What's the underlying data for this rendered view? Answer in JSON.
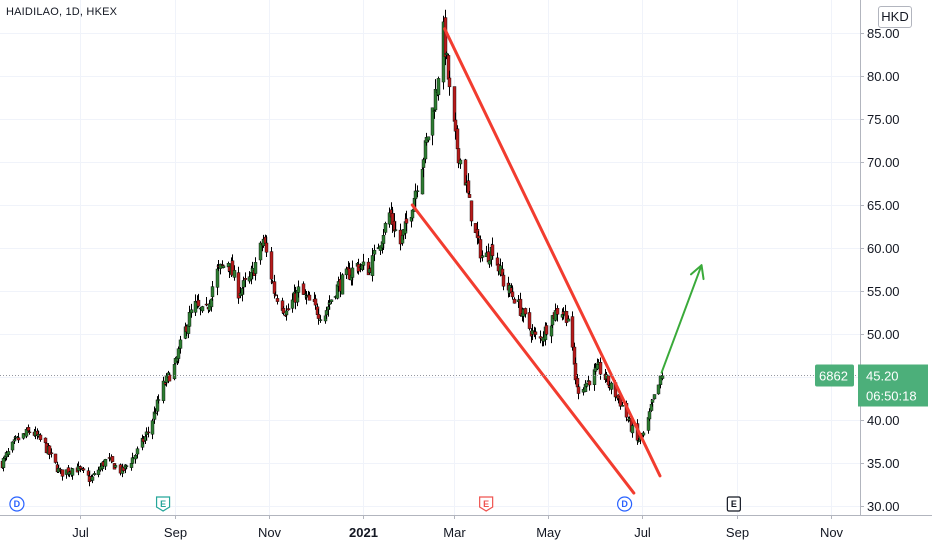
{
  "header": {
    "symbol_label": "HAIDILAO, 1D, HKEX",
    "currency": "HKD"
  },
  "price_tag": {
    "ticker": "6862",
    "price": "45.20",
    "countdown": "06:50:18",
    "color": "#4caf7a"
  },
  "colors": {
    "up": "#26a69a",
    "down": "#ef5350",
    "candle_up": "#2e7d32",
    "candle_down": "#b71c1c",
    "trend_red": "#f23c2f",
    "arrow_green": "#3aaa3a",
    "dividend": "#2962ff",
    "earnings_past": "#26a69a",
    "earnings_recent": "#ef5350",
    "earnings_future": "#131722"
  },
  "chart_data": {
    "type": "candlestick",
    "title": "HAIDILAO, 1D, HKEX",
    "currency": "HKD",
    "y_ticks": [
      "30.00",
      "35.00",
      "40.00",
      "45.00",
      "50.00",
      "55.00",
      "60.00",
      "65.00",
      "70.00",
      "75.00",
      "80.00",
      "85.00"
    ],
    "ylim": [
      30,
      87
    ],
    "x_ticks": [
      {
        "label": "Jul",
        "date": "2020-07-01"
      },
      {
        "label": "Sep",
        "date": "2020-09-01"
      },
      {
        "label": "Nov",
        "date": "2020-11-01"
      },
      {
        "label": "2021",
        "date": "2021-01-01",
        "bold": true
      },
      {
        "label": "Mar",
        "date": "2021-03-01"
      },
      {
        "label": "May",
        "date": "2021-05-01"
      },
      {
        "label": "Jul",
        "date": "2021-07-01"
      },
      {
        "label": "Sep",
        "date": "2021-09-01"
      },
      {
        "label": "Nov",
        "date": "2021-11-01"
      }
    ],
    "xlim": [
      "2020-05-10",
      "2021-11-20"
    ],
    "price_path": [
      [
        "2020-05-11",
        35.0
      ],
      [
        "2020-05-20",
        37.5
      ],
      [
        "2020-05-30",
        38.8
      ],
      [
        "2020-06-08",
        37.0
      ],
      [
        "2020-06-18",
        33.8
      ],
      [
        "2020-06-28",
        34.5
      ],
      [
        "2020-07-08",
        33.0
      ],
      [
        "2020-07-18",
        35.5
      ],
      [
        "2020-07-28",
        34.0
      ],
      [
        "2020-08-06",
        36.0
      ],
      [
        "2020-08-15",
        39.0
      ],
      [
        "2020-08-24",
        44.0
      ],
      [
        "2020-09-01",
        46.5
      ],
      [
        "2020-09-06",
        50.0
      ],
      [
        "2020-09-13",
        53.5
      ],
      [
        "2020-09-20",
        52.0
      ],
      [
        "2020-09-27",
        57.0
      ],
      [
        "2020-10-05",
        58.5
      ],
      [
        "2020-10-12",
        55.0
      ],
      [
        "2020-10-20",
        56.5
      ],
      [
        "2020-10-28",
        61.0
      ],
      [
        "2020-11-04",
        55.0
      ],
      [
        "2020-11-12",
        52.5
      ],
      [
        "2020-11-20",
        55.0
      ],
      [
        "2020-11-28",
        53.5
      ],
      [
        "2020-12-06",
        52.0
      ],
      [
        "2020-12-13",
        55.0
      ],
      [
        "2020-12-20",
        56.5
      ],
      [
        "2020-12-28",
        58.0
      ],
      [
        "2021-01-05",
        57.5
      ],
      [
        "2021-01-12",
        61.0
      ],
      [
        "2021-01-18",
        64.0
      ],
      [
        "2021-01-25",
        60.5
      ],
      [
        "2021-02-01",
        64.5
      ],
      [
        "2021-02-08",
        70.0
      ],
      [
        "2021-02-13",
        74.0
      ],
      [
        "2021-02-18",
        79.0
      ],
      [
        "2021-02-22",
        85.0
      ],
      [
        "2021-02-26",
        78.0
      ],
      [
        "2021-03-02",
        72.5
      ],
      [
        "2021-03-08",
        68.0
      ],
      [
        "2021-03-14",
        62.0
      ],
      [
        "2021-03-20",
        58.5
      ],
      [
        "2021-03-26",
        60.0
      ],
      [
        "2021-04-02",
        56.0
      ],
      [
        "2021-04-10",
        54.0
      ],
      [
        "2021-04-18",
        51.0
      ],
      [
        "2021-04-25",
        49.0
      ],
      [
        "2021-05-02",
        51.5
      ],
      [
        "2021-05-08",
        53.0
      ],
      [
        "2021-05-14",
        52.0
      ],
      [
        "2021-05-20",
        43.5
      ],
      [
        "2021-05-27",
        44.5
      ],
      [
        "2021-06-03",
        46.0
      ],
      [
        "2021-06-10",
        44.0
      ],
      [
        "2021-06-16",
        42.5
      ],
      [
        "2021-06-22",
        40.0
      ],
      [
        "2021-06-28",
        37.5
      ],
      [
        "2021-07-03",
        38.5
      ],
      [
        "2021-07-08",
        42.0
      ],
      [
        "2021-07-12",
        44.0
      ],
      [
        "2021-07-14",
        45.2
      ]
    ],
    "last_price": 45.2,
    "annotations": {
      "channel_upper": [
        [
          "2021-02-23",
          85.5
        ],
        [
          "2021-07-13",
          33.5
        ]
      ],
      "channel_lower": [
        [
          "2021-02-02",
          65.0
        ],
        [
          "2021-06-26",
          31.5
        ]
      ],
      "breakout_arrow": [
        [
          "2021-07-14",
          45.5
        ],
        [
          "2021-08-09",
          58.0
        ]
      ]
    },
    "events": [
      {
        "type": "dividend",
        "letter": "D",
        "date": "2020-05-21"
      },
      {
        "type": "earnings_past",
        "letter": "E",
        "date": "2020-08-24"
      },
      {
        "type": "earnings_recent",
        "letter": "E",
        "date": "2021-03-22"
      },
      {
        "type": "dividend",
        "letter": "D",
        "date": "2021-06-20"
      },
      {
        "type": "earnings_future",
        "letter": "E",
        "date": "2021-08-30"
      }
    ]
  }
}
